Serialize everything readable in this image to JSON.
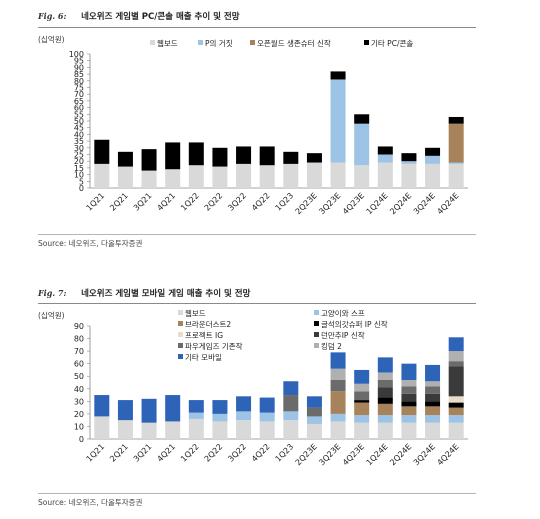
{
  "charts": [
    {
      "fig_no": "Fig. 6:",
      "title": "네오위즈 게임별 PC/콘솔 매출 추이 및 전망",
      "unit": "(십억원)",
      "source": "Source: 네오위즈, 다올투자증권",
      "chart_data": {
        "type": "bar",
        "stacked": true,
        "categories": [
          "1Q21",
          "2Q21",
          "3Q21",
          "4Q21",
          "1Q22",
          "2Q22",
          "3Q22",
          "4Q22",
          "1Q23",
          "2Q23E",
          "3Q23E",
          "4Q23E",
          "1Q24E",
          "2Q24E",
          "3Q24E",
          "4Q24E"
        ],
        "ylim": [
          0,
          100
        ],
        "yticks": [
          0,
          5,
          10,
          15,
          20,
          25,
          30,
          35,
          40,
          45,
          50,
          55,
          60,
          65,
          70,
          75,
          80,
          85,
          90,
          95,
          100
        ],
        "legend_position": "top",
        "series": [
          {
            "name": "웹보드",
            "color": "#d9d9d9",
            "values": [
              18,
              16,
              13,
              14,
              17,
              16,
              18,
              17,
              18,
              19,
              19,
              17,
              19,
              18,
              18,
              18
            ]
          },
          {
            "name": "P의 거짓",
            "color": "#9dc3e6",
            "values": [
              0,
              0,
              0,
              0,
              0,
              0,
              0,
              0,
              0,
              0,
              62,
              31,
              6,
              2,
              6,
              1
            ]
          },
          {
            "name": "오픈월드 생존슈터 신작",
            "color": "#a6835a",
            "values": [
              0,
              0,
              0,
              0,
              0,
              0,
              0,
              0,
              0,
              0,
              0,
              0,
              0,
              0,
              0,
              29
            ]
          },
          {
            "name": "기타 PC/콘솔",
            "color": "#000000",
            "values": [
              18,
              11,
              16,
              20,
              17,
              14,
              13,
              14,
              9,
              7,
              6,
              7,
              6,
              6,
              6,
              5
            ]
          }
        ]
      }
    },
    {
      "fig_no": "Fig. 7:",
      "title": "네오위즈 게임별 모바일 게임 매출 추이 및 전망",
      "unit": "(십억원)",
      "source": "Source: 네오위즈, 다올투자증권",
      "chart_data": {
        "type": "bar",
        "stacked": true,
        "categories": [
          "1Q21",
          "2Q21",
          "3Q21",
          "4Q21",
          "1Q22",
          "2Q22",
          "3Q22",
          "4Q22",
          "1Q23",
          "2Q23E",
          "3Q23E",
          "4Q23E",
          "1Q24E",
          "2Q24E",
          "3Q24E",
          "4Q24E"
        ],
        "ylim": [
          0,
          90
        ],
        "yticks": [
          0,
          10,
          20,
          30,
          40,
          50,
          60,
          70,
          80,
          90
        ],
        "legend_position": "top",
        "series": [
          {
            "name": "웹보드",
            "color": "#d9d9d9",
            "values": [
              18,
              15,
              13,
              14,
              16,
              14,
              15,
              14,
              15,
              12,
              14,
              13,
              13,
              13,
              13,
              13
            ]
          },
          {
            "name": "고양이와 스프",
            "color": "#9dc3e6",
            "values": [
              0,
              0,
              0,
              0,
              5,
              6,
              7,
              7,
              7,
              6,
              6,
              6,
              6,
              6,
              6,
              6
            ]
          },
          {
            "name": "브라운더스트2",
            "color": "#a6835a",
            "values": [
              0,
              0,
              0,
              0,
              0,
              0,
              0,
              0,
              0,
              0,
              18,
              10,
              9,
              7,
              7,
              6
            ]
          },
          {
            "name": "글석의갓슈퍼 IP 신작",
            "color": "#000000",
            "values": [
              0,
              0,
              0,
              0,
              0,
              0,
              0,
              0,
              0,
              0,
              0,
              2,
              5,
              4,
              4,
              4
            ]
          },
          {
            "name": "프로젝트 IG",
            "color": "#e8dccb",
            "values": [
              0,
              0,
              0,
              0,
              0,
              0,
              0,
              0,
              0,
              0,
              0,
              0,
              0,
              0,
              0,
              5
            ]
          },
          {
            "name": "던만추IP 신작",
            "color": "#3a3a3a",
            "values": [
              0,
              0,
              0,
              0,
              0,
              0,
              0,
              0,
              0,
              0,
              0,
              0,
              8,
              6,
              6,
              24
            ]
          },
          {
            "name": "파우게임즈 기존작",
            "color": "#6b6b6b",
            "values": [
              0,
              0,
              0,
              0,
              0,
              0,
              0,
              0,
              13,
              7,
              9,
              7,
              6,
              6,
              6,
              4
            ]
          },
          {
            "name": "킹덤 2",
            "color": "#b0b0b0",
            "values": [
              0,
              0,
              0,
              0,
              0,
              0,
              0,
              0,
              0,
              0,
              9,
              6,
              6,
              5,
              4,
              8
            ]
          },
          {
            "name": "기타 모바일",
            "color": "#2e64b8",
            "values": [
              17,
              16,
              19,
              21,
              10,
              11,
              12,
              12,
              11,
              9,
              13,
              11,
              12,
              13,
              13,
              11
            ]
          }
        ]
      }
    }
  ]
}
